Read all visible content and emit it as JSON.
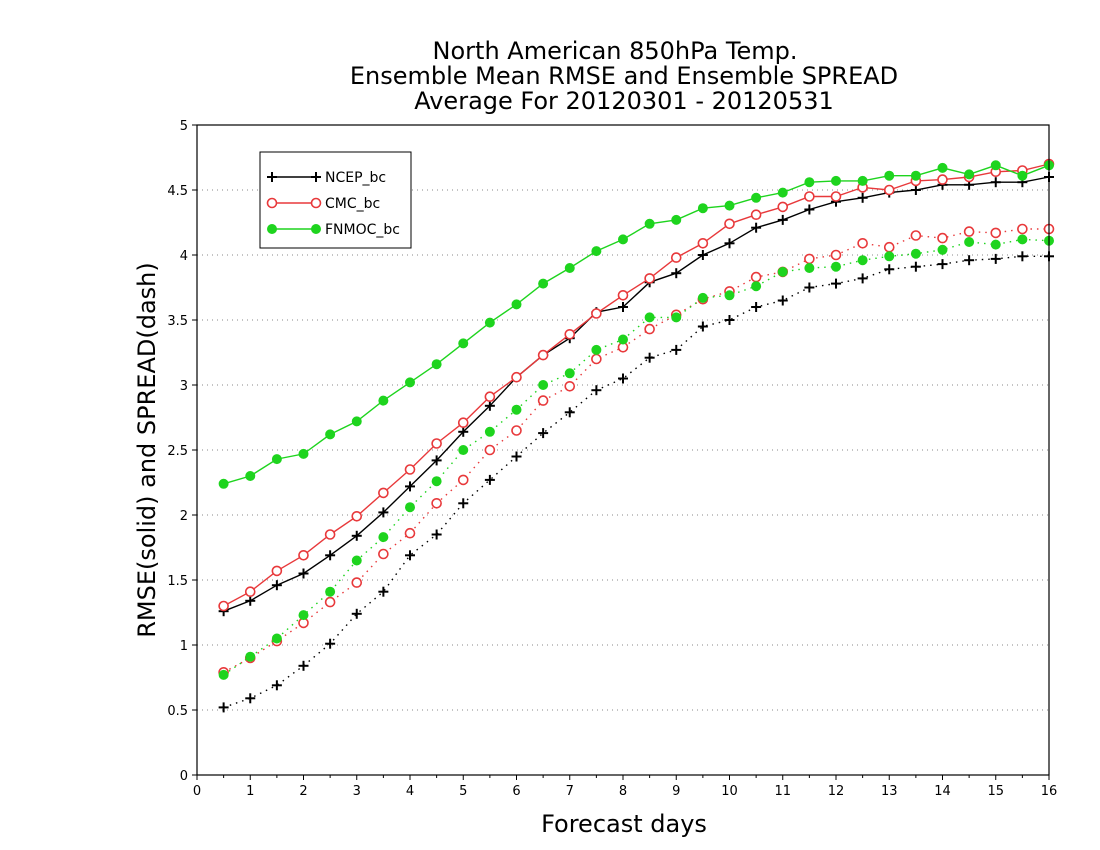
{
  "chart_data": {
    "type": "line",
    "title": [
      "North American 850hPa Temp.",
      "Ensemble Mean RMSE and Ensemble SPREAD",
      "Average For 20120301 - 20120531"
    ],
    "xlabel": "Forecast days",
    "ylabel": "RMSE(solid) and SPREAD(dash)",
    "xlim": [
      0,
      16
    ],
    "ylim": [
      0,
      5
    ],
    "x_ticks": [
      "0",
      "1",
      "2",
      "3",
      "4",
      "5",
      "6",
      "7",
      "8",
      "9",
      "10",
      "11",
      "12",
      "13",
      "14",
      "15",
      "16"
    ],
    "y_ticks": [
      "0",
      "0.5",
      "1",
      "1.5",
      "2",
      "2.5",
      "3",
      "3.5",
      "4",
      "4.5",
      "5"
    ],
    "y_tick_values": [
      0,
      0.5,
      1,
      1.5,
      2,
      2.5,
      3,
      3.5,
      4,
      4.5,
      5
    ],
    "grid": "horizontal dotted",
    "legend_position": "top-left",
    "x": [
      0.5,
      1,
      1.5,
      2,
      2.5,
      3,
      3.5,
      4,
      4.5,
      5,
      5.5,
      6,
      6.5,
      7,
      7.5,
      8,
      8.5,
      9,
      9.5,
      10,
      10.5,
      11,
      11.5,
      12,
      12.5,
      13,
      13.5,
      14,
      14.5,
      15,
      15.5,
      16
    ],
    "series": [
      {
        "name": "NCEP_bc",
        "color": "#000000",
        "marker": "plus",
        "rmse": [
          1.26,
          1.34,
          1.46,
          1.55,
          1.69,
          1.84,
          2.02,
          2.22,
          2.42,
          2.64,
          2.84,
          3.06,
          3.23,
          3.36,
          3.56,
          3.6,
          3.79,
          3.86,
          4.0,
          4.09,
          4.21,
          4.27,
          4.35,
          4.41,
          4.44,
          4.48,
          4.5,
          4.54,
          4.54,
          4.56,
          4.56,
          4.6
        ],
        "spread": [
          0.52,
          0.59,
          0.69,
          0.84,
          1.01,
          1.24,
          1.41,
          1.69,
          1.85,
          2.09,
          2.27,
          2.45,
          2.63,
          2.79,
          2.96,
          3.05,
          3.21,
          3.27,
          3.45,
          3.5,
          3.6,
          3.65,
          3.75,
          3.78,
          3.82,
          3.89,
          3.91,
          3.93,
          3.96,
          3.97,
          3.99,
          3.99
        ]
      },
      {
        "name": "CMC_bc",
        "color": "#e8393b",
        "marker": "open-circle",
        "rmse": [
          1.3,
          1.41,
          1.57,
          1.69,
          1.85,
          1.99,
          2.17,
          2.35,
          2.55,
          2.71,
          2.91,
          3.06,
          3.23,
          3.39,
          3.55,
          3.69,
          3.82,
          3.98,
          4.09,
          4.24,
          4.31,
          4.37,
          4.45,
          4.45,
          4.52,
          4.5,
          4.57,
          4.58,
          4.6,
          4.64,
          4.65,
          4.7
        ],
        "spread": [
          0.79,
          0.9,
          1.03,
          1.17,
          1.33,
          1.48,
          1.7,
          1.86,
          2.09,
          2.27,
          2.5,
          2.65,
          2.88,
          2.99,
          3.2,
          3.29,
          3.43,
          3.54,
          3.66,
          3.72,
          3.83,
          3.87,
          3.97,
          4.0,
          4.09,
          4.06,
          4.15,
          4.13,
          4.18,
          4.17,
          4.2,
          4.2
        ]
      },
      {
        "name": "FNMOC_bc",
        "color": "#1ed41e",
        "marker": "filled-circle",
        "rmse": [
          2.24,
          2.3,
          2.43,
          2.47,
          2.62,
          2.72,
          2.88,
          3.02,
          3.16,
          3.32,
          3.48,
          3.62,
          3.78,
          3.9,
          4.03,
          4.12,
          4.24,
          4.27,
          4.36,
          4.38,
          4.44,
          4.48,
          4.56,
          4.57,
          4.57,
          4.61,
          4.61,
          4.67,
          4.62,
          4.69,
          4.61,
          4.69
        ],
        "spread": [
          0.77,
          0.91,
          1.05,
          1.23,
          1.41,
          1.65,
          1.83,
          2.06,
          2.26,
          2.5,
          2.64,
          2.81,
          3.0,
          3.09,
          3.27,
          3.35,
          3.52,
          3.52,
          3.67,
          3.69,
          3.76,
          3.87,
          3.9,
          3.91,
          3.96,
          3.99,
          4.01,
          4.04,
          4.1,
          4.08,
          4.12,
          4.11
        ]
      }
    ]
  }
}
